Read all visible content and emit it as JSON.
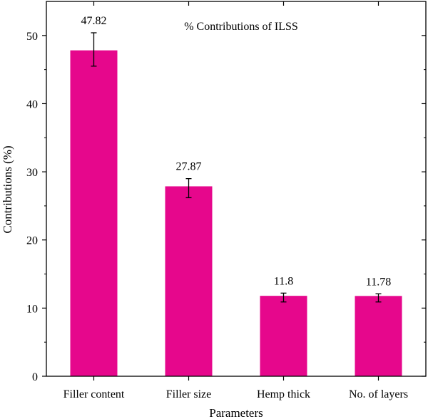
{
  "chart_data": {
    "type": "bar",
    "title": "% Contributions of ILSS",
    "xlabel": "Parameters",
    "ylabel": "Contributions (%)",
    "categories": [
      "Filler content",
      "Filler size",
      "Hemp thick",
      "No. of layers"
    ],
    "values": [
      47.82,
      27.87,
      11.8,
      11.78
    ],
    "data_labels": [
      "47.82",
      "27.87",
      "11.8",
      "11.78"
    ],
    "error_low": [
      45.5,
      26.2,
      10.9,
      10.9
    ],
    "error_high": [
      50.4,
      29.0,
      12.2,
      12.1
    ],
    "ylim": [
      0,
      55
    ],
    "yticks": [
      0,
      10,
      20,
      30,
      40,
      50
    ],
    "ytick_labels": [
      "0",
      "10",
      "20",
      "30",
      "40",
      "50"
    ],
    "grid": false,
    "legend": "none",
    "bar_color": "#e6078c"
  }
}
